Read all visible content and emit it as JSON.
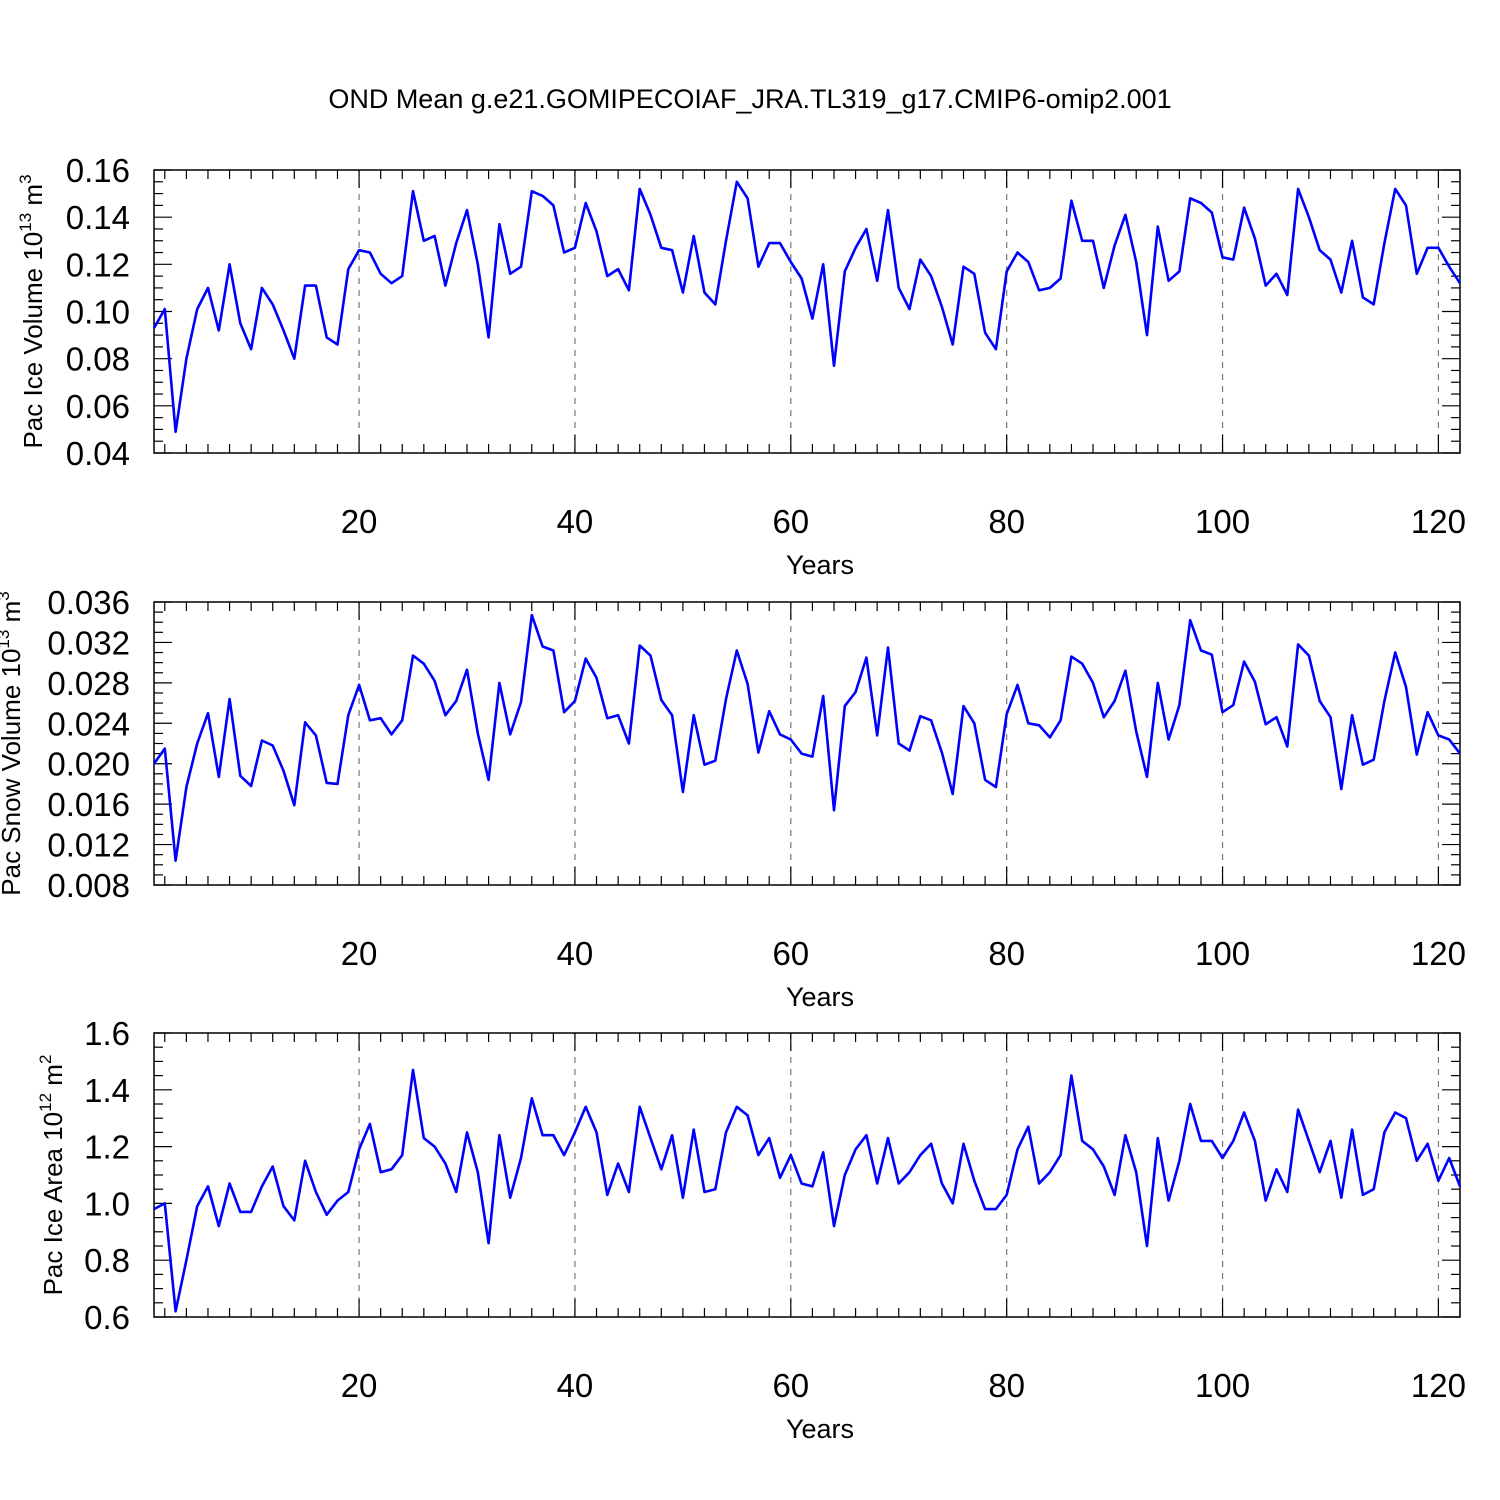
{
  "figure": {
    "title": "OND Mean g.e21.GOMIPECOIAF_JRA.TL319_g17.CMIP6-omip2.001"
  },
  "colors": {
    "line": "#0000ff",
    "grid": "#777777",
    "axes": "#000000",
    "background": "#ffffff"
  },
  "chart_data": [
    {
      "type": "line",
      "name": "pac-ice-volume",
      "ylabel": {
        "prefix": "Pac Ice Volume 10",
        "exp": "13",
        "unit": " m",
        "unit_exp": "3"
      },
      "xlabel": "Years",
      "xlim": [
        1,
        122
      ],
      "ylim": [
        0.04,
        0.16
      ],
      "x_ticks": [
        20,
        40,
        60,
        80,
        100,
        120
      ],
      "x_tick_labels": [
        "20",
        "40",
        "60",
        "80",
        "100",
        "120"
      ],
      "x_minor_step": 2,
      "y_ticks": [
        0.04,
        0.06,
        0.08,
        0.1,
        0.12,
        0.14,
        0.16
      ],
      "y_tick_labels": [
        "0.04",
        "0.06",
        "0.08",
        "0.10",
        "0.12",
        "0.14",
        "0.16"
      ],
      "y_minor_step": 0.005,
      "grid_x": true,
      "x": [
        1,
        2,
        3,
        4,
        5,
        6,
        7,
        8,
        9,
        10,
        11,
        12,
        13,
        14,
        15,
        16,
        17,
        18,
        19,
        20,
        21,
        22,
        23,
        24,
        25,
        26,
        27,
        28,
        29,
        30,
        31,
        32,
        33,
        34,
        35,
        36,
        37,
        38,
        39,
        40,
        41,
        42,
        43,
        44,
        45,
        46,
        47,
        48,
        49,
        50,
        51,
        52,
        53,
        54,
        55,
        56,
        57,
        58,
        59,
        60,
        61,
        62,
        63,
        64,
        65,
        66,
        67,
        68,
        69,
        70,
        71,
        72,
        73,
        74,
        75,
        76,
        77,
        78,
        79,
        80,
        81,
        82,
        83,
        84,
        85,
        86,
        87,
        88,
        89,
        90,
        91,
        92,
        93,
        94,
        95,
        96,
        97,
        98,
        99,
        100,
        101,
        102,
        103,
        104,
        105,
        106,
        107,
        108,
        109,
        110,
        111,
        112,
        113,
        114,
        115,
        116,
        117,
        118,
        119,
        120,
        121,
        122
      ],
      "values": [
        0.093,
        0.101,
        0.049,
        0.08,
        0.101,
        0.11,
        0.092,
        0.12,
        0.095,
        0.084,
        0.11,
        0.103,
        0.092,
        0.08,
        0.111,
        0.111,
        0.089,
        0.086,
        0.118,
        0.126,
        0.125,
        0.116,
        0.112,
        0.115,
        0.151,
        0.13,
        0.132,
        0.111,
        0.129,
        0.143,
        0.12,
        0.089,
        0.137,
        0.116,
        0.119,
        0.151,
        0.149,
        0.145,
        0.125,
        0.127,
        0.146,
        0.134,
        0.115,
        0.118,
        0.109,
        0.152,
        0.141,
        0.127,
        0.126,
        0.108,
        0.132,
        0.108,
        0.103,
        0.13,
        0.155,
        0.148,
        0.119,
        0.129,
        0.129,
        0.121,
        0.114,
        0.097,
        0.12,
        0.077,
        0.117,
        0.127,
        0.135,
        0.113,
        0.143,
        0.11,
        0.101,
        0.122,
        0.115,
        0.102,
        0.086,
        0.119,
        0.116,
        0.091,
        0.084,
        0.117,
        0.125,
        0.121,
        0.109,
        0.11,
        0.114,
        0.147,
        0.13,
        0.13,
        0.11,
        0.128,
        0.141,
        0.121,
        0.09,
        0.136,
        0.113,
        0.117,
        0.148,
        0.146,
        0.142,
        0.123,
        0.122,
        0.144,
        0.131,
        0.111,
        0.116,
        0.107,
        0.152,
        0.14,
        0.126,
        0.122,
        0.108,
        0.13,
        0.106,
        0.103,
        0.129,
        0.152,
        0.145,
        0.116,
        0.127,
        0.127,
        0.119,
        0.112
      ]
    },
    {
      "type": "line",
      "name": "pac-snow-volume",
      "ylabel": {
        "prefix": "Pac Snow Volume 10",
        "exp": "13",
        "unit": " m",
        "unit_exp": "3"
      },
      "xlabel": "Years",
      "xlim": [
        1,
        122
      ],
      "ylim": [
        0.008,
        0.036
      ],
      "x_ticks": [
        20,
        40,
        60,
        80,
        100,
        120
      ],
      "x_tick_labels": [
        "20",
        "40",
        "60",
        "80",
        "100",
        "120"
      ],
      "x_minor_step": 2,
      "y_ticks": [
        0.008,
        0.012,
        0.016,
        0.02,
        0.024,
        0.028,
        0.032,
        0.036
      ],
      "y_tick_labels": [
        "0.008",
        "0.012",
        "0.016",
        "0.020",
        "0.024",
        "0.028",
        "0.032",
        "0.036"
      ],
      "y_minor_step": 0.001,
      "grid_x": true,
      "x": [
        1,
        2,
        3,
        4,
        5,
        6,
        7,
        8,
        9,
        10,
        11,
        12,
        13,
        14,
        15,
        16,
        17,
        18,
        19,
        20,
        21,
        22,
        23,
        24,
        25,
        26,
        27,
        28,
        29,
        30,
        31,
        32,
        33,
        34,
        35,
        36,
        37,
        38,
        39,
        40,
        41,
        42,
        43,
        44,
        45,
        46,
        47,
        48,
        49,
        50,
        51,
        52,
        53,
        54,
        55,
        56,
        57,
        58,
        59,
        60,
        61,
        62,
        63,
        64,
        65,
        66,
        67,
        68,
        69,
        70,
        71,
        72,
        73,
        74,
        75,
        76,
        77,
        78,
        79,
        80,
        81,
        82,
        83,
        84,
        85,
        86,
        87,
        88,
        89,
        90,
        91,
        92,
        93,
        94,
        95,
        96,
        97,
        98,
        99,
        100,
        101,
        102,
        103,
        104,
        105,
        106,
        107,
        108,
        109,
        110,
        111,
        112,
        113,
        114,
        115,
        116,
        117,
        118,
        119,
        120,
        121,
        122
      ],
      "values": [
        0.02,
        0.0215,
        0.0104,
        0.0177,
        0.022,
        0.025,
        0.0187,
        0.0264,
        0.0188,
        0.0178,
        0.0223,
        0.0218,
        0.0193,
        0.0159,
        0.0241,
        0.0228,
        0.0181,
        0.018,
        0.0248,
        0.0278,
        0.0243,
        0.0245,
        0.0229,
        0.0243,
        0.0307,
        0.0299,
        0.0282,
        0.0248,
        0.0262,
        0.0293,
        0.023,
        0.0184,
        0.028,
        0.0229,
        0.0261,
        0.0347,
        0.0316,
        0.0312,
        0.0251,
        0.0262,
        0.0304,
        0.0285,
        0.0245,
        0.0248,
        0.022,
        0.0317,
        0.0307,
        0.0263,
        0.0248,
        0.0172,
        0.0248,
        0.0199,
        0.0203,
        0.0264,
        0.0312,
        0.0279,
        0.0211,
        0.0252,
        0.0229,
        0.0224,
        0.021,
        0.0207,
        0.0267,
        0.0154,
        0.0257,
        0.0271,
        0.0305,
        0.0228,
        0.0315,
        0.022,
        0.0213,
        0.0247,
        0.0243,
        0.0211,
        0.017,
        0.0257,
        0.024,
        0.0184,
        0.0177,
        0.0249,
        0.0278,
        0.024,
        0.0238,
        0.0226,
        0.0243,
        0.0306,
        0.0299,
        0.028,
        0.0246,
        0.0262,
        0.0292,
        0.0232,
        0.0187,
        0.028,
        0.0224,
        0.0258,
        0.0342,
        0.0312,
        0.0308,
        0.0251,
        0.0258,
        0.0301,
        0.0281,
        0.0239,
        0.0246,
        0.0217,
        0.0318,
        0.0307,
        0.0262,
        0.0246,
        0.0175,
        0.0248,
        0.0199,
        0.0204,
        0.0262,
        0.031,
        0.0276,
        0.0209,
        0.0251,
        0.0228,
        0.0224,
        0.021
      ]
    },
    {
      "type": "line",
      "name": "pac-ice-area",
      "ylabel": {
        "prefix": "Pac Ice Area 10",
        "exp": "12",
        "unit": " m",
        "unit_exp": "2"
      },
      "xlabel": "Years",
      "xlim": [
        1,
        122
      ],
      "ylim": [
        0.6,
        1.6
      ],
      "x_ticks": [
        20,
        40,
        60,
        80,
        100,
        120
      ],
      "x_tick_labels": [
        "20",
        "40",
        "60",
        "80",
        "100",
        "120"
      ],
      "x_minor_step": 2,
      "y_ticks": [
        0.6,
        0.8,
        1.0,
        1.2,
        1.4,
        1.6
      ],
      "y_tick_labels": [
        "0.6",
        "0.8",
        "1.0",
        "1.2",
        "1.4",
        "1.6"
      ],
      "y_minor_step": 0.05,
      "grid_x": true,
      "x": [
        1,
        2,
        3,
        4,
        5,
        6,
        7,
        8,
        9,
        10,
        11,
        12,
        13,
        14,
        15,
        16,
        17,
        18,
        19,
        20,
        21,
        22,
        23,
        24,
        25,
        26,
        27,
        28,
        29,
        30,
        31,
        32,
        33,
        34,
        35,
        36,
        37,
        38,
        39,
        40,
        41,
        42,
        43,
        44,
        45,
        46,
        47,
        48,
        49,
        50,
        51,
        52,
        53,
        54,
        55,
        56,
        57,
        58,
        59,
        60,
        61,
        62,
        63,
        64,
        65,
        66,
        67,
        68,
        69,
        70,
        71,
        72,
        73,
        74,
        75,
        76,
        77,
        78,
        79,
        80,
        81,
        82,
        83,
        84,
        85,
        86,
        87,
        88,
        89,
        90,
        91,
        92,
        93,
        94,
        95,
        96,
        97,
        98,
        99,
        100,
        101,
        102,
        103,
        104,
        105,
        106,
        107,
        108,
        109,
        110,
        111,
        112,
        113,
        114,
        115,
        116,
        117,
        118,
        119,
        120,
        121,
        122
      ],
      "values": [
        0.98,
        1.0,
        0.62,
        0.8,
        0.99,
        1.06,
        0.92,
        1.07,
        0.97,
        0.97,
        1.06,
        1.13,
        0.99,
        0.94,
        1.15,
        1.04,
        0.96,
        1.01,
        1.04,
        1.19,
        1.28,
        1.11,
        1.12,
        1.17,
        1.47,
        1.23,
        1.2,
        1.14,
        1.04,
        1.25,
        1.11,
        0.86,
        1.24,
        1.02,
        1.16,
        1.37,
        1.24,
        1.24,
        1.17,
        1.25,
        1.34,
        1.25,
        1.03,
        1.14,
        1.04,
        1.34,
        1.23,
        1.12,
        1.24,
        1.02,
        1.26,
        1.04,
        1.05,
        1.25,
        1.34,
        1.31,
        1.17,
        1.23,
        1.09,
        1.17,
        1.07,
        1.06,
        1.18,
        0.92,
        1.1,
        1.19,
        1.24,
        1.07,
        1.23,
        1.07,
        1.11,
        1.17,
        1.21,
        1.07,
        1.0,
        1.21,
        1.08,
        0.98,
        0.98,
        1.03,
        1.19,
        1.27,
        1.07,
        1.11,
        1.17,
        1.45,
        1.22,
        1.19,
        1.13,
        1.03,
        1.24,
        1.11,
        0.85,
        1.23,
        1.01,
        1.15,
        1.35,
        1.22,
        1.22,
        1.16,
        1.22,
        1.32,
        1.22,
        1.01,
        1.12,
        1.04,
        1.33,
        1.22,
        1.11,
        1.22,
        1.02,
        1.26,
        1.03,
        1.05,
        1.25,
        1.32,
        1.3,
        1.15,
        1.21,
        1.08,
        1.16,
        1.06
      ]
    }
  ]
}
